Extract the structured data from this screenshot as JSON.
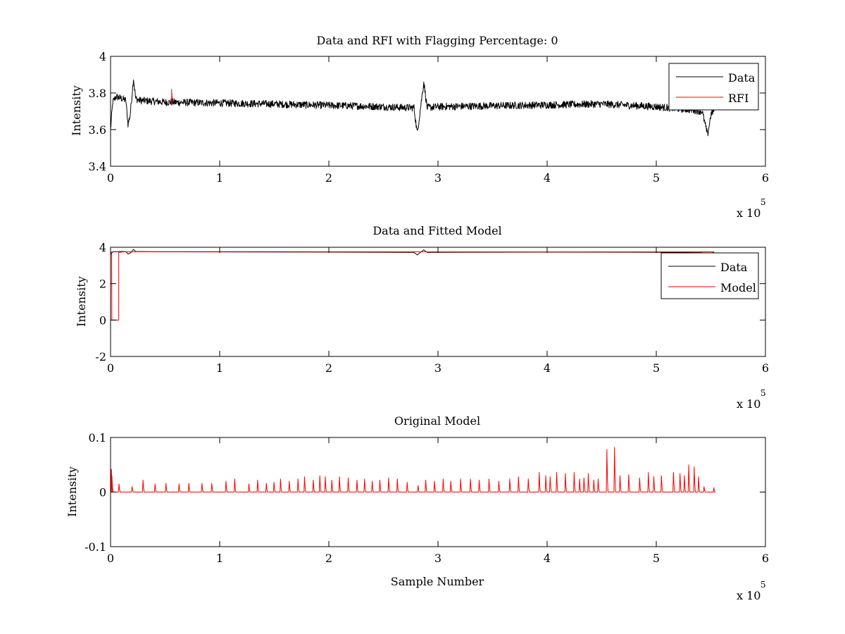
{
  "chart_data": [
    {
      "type": "line",
      "title": "Data and RFI with Flagging Percentage: 0",
      "xlabel": "",
      "ylabel": "Intensity",
      "xlim": [
        0,
        6
      ],
      "ylim": [
        3.4,
        4
      ],
      "x_multiplier_base": "x 10",
      "x_multiplier_exp": "5",
      "xticks": [
        "0",
        "1",
        "2",
        "3",
        "4",
        "5",
        "6"
      ],
      "yticks": [
        "3.4",
        "3.6",
        "3.8",
        "4"
      ],
      "ytick_values": [
        3.4,
        3.6,
        3.8,
        4
      ],
      "legend": {
        "position": "top-right",
        "entries": [
          "Data",
          "RFI"
        ]
      },
      "series": [
        {
          "name": "Data",
          "color": "#000000",
          "x": [
            0,
            0.02,
            0.05,
            0.1,
            0.14,
            0.16,
            0.18,
            0.21,
            0.23,
            0.26,
            0.5,
            1.0,
            1.5,
            1.8,
            2.2,
            2.5,
            2.7,
            2.78,
            2.81,
            2.84,
            2.87,
            2.9,
            3.0,
            3.5,
            4.0,
            4.5,
            5.0,
            5.3,
            5.42,
            5.47,
            5.5,
            5.53
          ],
          "y": [
            3.6,
            3.75,
            3.78,
            3.77,
            3.76,
            3.63,
            3.68,
            3.88,
            3.77,
            3.76,
            3.75,
            3.745,
            3.74,
            3.735,
            3.73,
            3.725,
            3.72,
            3.72,
            3.58,
            3.72,
            3.86,
            3.72,
            3.725,
            3.73,
            3.735,
            3.74,
            3.725,
            3.71,
            3.7,
            3.57,
            3.68,
            3.71
          ],
          "noise": 0.02
        },
        {
          "name": "RFI",
          "color": "#ff0000",
          "x": [
            0.56,
            0.56,
            0.562,
            0.562,
            0.565,
            0.565
          ],
          "y": [
            3.75,
            3.82,
            3.74,
            3.8,
            3.75,
            3.78
          ]
        }
      ]
    },
    {
      "type": "line",
      "title": "Data and Fitted Model",
      "xlabel": "",
      "ylabel": "Intensity",
      "xlim": [
        0,
        6
      ],
      "ylim": [
        -2,
        4
      ],
      "x_multiplier_base": "x 10",
      "x_multiplier_exp": "5",
      "xticks": [
        "0",
        "1",
        "2",
        "3",
        "4",
        "5",
        "6"
      ],
      "yticks": [
        "-2",
        "0",
        "2",
        "4"
      ],
      "ytick_values": [
        -2,
        0,
        2,
        4
      ],
      "legend": {
        "position": "top-right",
        "entries": [
          "Data",
          "Model"
        ]
      },
      "series": [
        {
          "name": "Data",
          "color": "#000000",
          "x": [
            0,
            0.02,
            0.1,
            0.14,
            0.16,
            0.18,
            0.21,
            0.23,
            0.5,
            1.0,
            2.0,
            2.78,
            2.81,
            2.87,
            2.9,
            4.0,
            5.0,
            5.42,
            5.47,
            5.5,
            5.53
          ],
          "y": [
            3.6,
            3.75,
            3.77,
            3.76,
            3.63,
            3.68,
            3.88,
            3.77,
            3.75,
            3.745,
            3.735,
            3.72,
            3.58,
            3.86,
            3.72,
            3.735,
            3.725,
            3.7,
            3.57,
            3.68,
            3.71
          ]
        },
        {
          "name": "Model",
          "color": "#ff0000",
          "x": [
            0,
            0.01,
            0.012,
            0.075,
            0.075,
            0.12,
            0.5,
            1.0,
            2.0,
            3.0,
            4.0,
            5.0,
            5.53
          ],
          "y": [
            3.7,
            3.75,
            0,
            0,
            3.72,
            3.75,
            3.76,
            3.76,
            3.755,
            3.75,
            3.75,
            3.75,
            3.75
          ]
        }
      ]
    },
    {
      "type": "line",
      "title": "Original Model",
      "xlabel": "Sample Number",
      "ylabel": "Intensity",
      "xlim": [
        0,
        6
      ],
      "ylim": [
        -0.1,
        0.1
      ],
      "x_multiplier_base": "x 10",
      "x_multiplier_exp": "5",
      "xticks": [
        "0",
        "1",
        "2",
        "3",
        "4",
        "5",
        "6"
      ],
      "yticks": [
        "-0.1",
        "0",
        "0.1"
      ],
      "ytick_values": [
        -0.1,
        0,
        0.1
      ],
      "legend": null,
      "series": [
        {
          "name": "Original Model",
          "color": "#ff0000",
          "x_start": 0,
          "x_end": 5.53,
          "baseline": 0,
          "spikes": [
            [
              0.01,
              0.042
            ],
            [
              0.015,
              0.03
            ],
            [
              0.08,
              0.015
            ],
            [
              0.2,
              0.01
            ],
            [
              0.3,
              0.022
            ],
            [
              0.41,
              0.015
            ],
            [
              0.51,
              0.016
            ],
            [
              0.63,
              0.015
            ],
            [
              0.72,
              0.016
            ],
            [
              0.84,
              0.016
            ],
            [
              0.93,
              0.016
            ],
            [
              1.06,
              0.02
            ],
            [
              1.14,
              0.024
            ],
            [
              1.27,
              0.015
            ],
            [
              1.35,
              0.022
            ],
            [
              1.43,
              0.016
            ],
            [
              1.5,
              0.018
            ],
            [
              1.56,
              0.024
            ],
            [
              1.64,
              0.02
            ],
            [
              1.72,
              0.024
            ],
            [
              1.78,
              0.028
            ],
            [
              1.86,
              0.022
            ],
            [
              1.92,
              0.03
            ],
            [
              1.97,
              0.028
            ],
            [
              2.03,
              0.022
            ],
            [
              2.1,
              0.028
            ],
            [
              2.18,
              0.026
            ],
            [
              2.26,
              0.022
            ],
            [
              2.33,
              0.024
            ],
            [
              2.4,
              0.02
            ],
            [
              2.47,
              0.022
            ],
            [
              2.55,
              0.026
            ],
            [
              2.63,
              0.024
            ],
            [
              2.72,
              0.018
            ],
            [
              2.82,
              0.012
            ],
            [
              2.89,
              0.022
            ],
            [
              2.97,
              0.02
            ],
            [
              3.05,
              0.024
            ],
            [
              3.12,
              0.02
            ],
            [
              3.21,
              0.024
            ],
            [
              3.3,
              0.024
            ],
            [
              3.38,
              0.022
            ],
            [
              3.47,
              0.024
            ],
            [
              3.56,
              0.02
            ],
            [
              3.66,
              0.024
            ],
            [
              3.74,
              0.028
            ],
            [
              3.83,
              0.024
            ],
            [
              3.93,
              0.036
            ],
            [
              3.99,
              0.03
            ],
            [
              4.03,
              0.028
            ],
            [
              4.09,
              0.036
            ],
            [
              4.17,
              0.034
            ],
            [
              4.25,
              0.036
            ],
            [
              4.3,
              0.024
            ],
            [
              4.34,
              0.026
            ],
            [
              4.38,
              0.034
            ],
            [
              4.43,
              0.022
            ],
            [
              4.47,
              0.024
            ],
            [
              4.55,
              0.078
            ],
            [
              4.62,
              0.082
            ],
            [
              4.67,
              0.03
            ],
            [
              4.75,
              0.032
            ],
            [
              4.85,
              0.026
            ],
            [
              4.93,
              0.036
            ],
            [
              4.98,
              0.028
            ],
            [
              5.05,
              0.03
            ],
            [
              5.16,
              0.036
            ],
            [
              5.22,
              0.034
            ],
            [
              5.26,
              0.03
            ],
            [
              5.3,
              0.05
            ],
            [
              5.35,
              0.046
            ],
            [
              5.39,
              0.028
            ],
            [
              5.44,
              0.01
            ],
            [
              5.53,
              0.008
            ]
          ]
        }
      ]
    }
  ]
}
